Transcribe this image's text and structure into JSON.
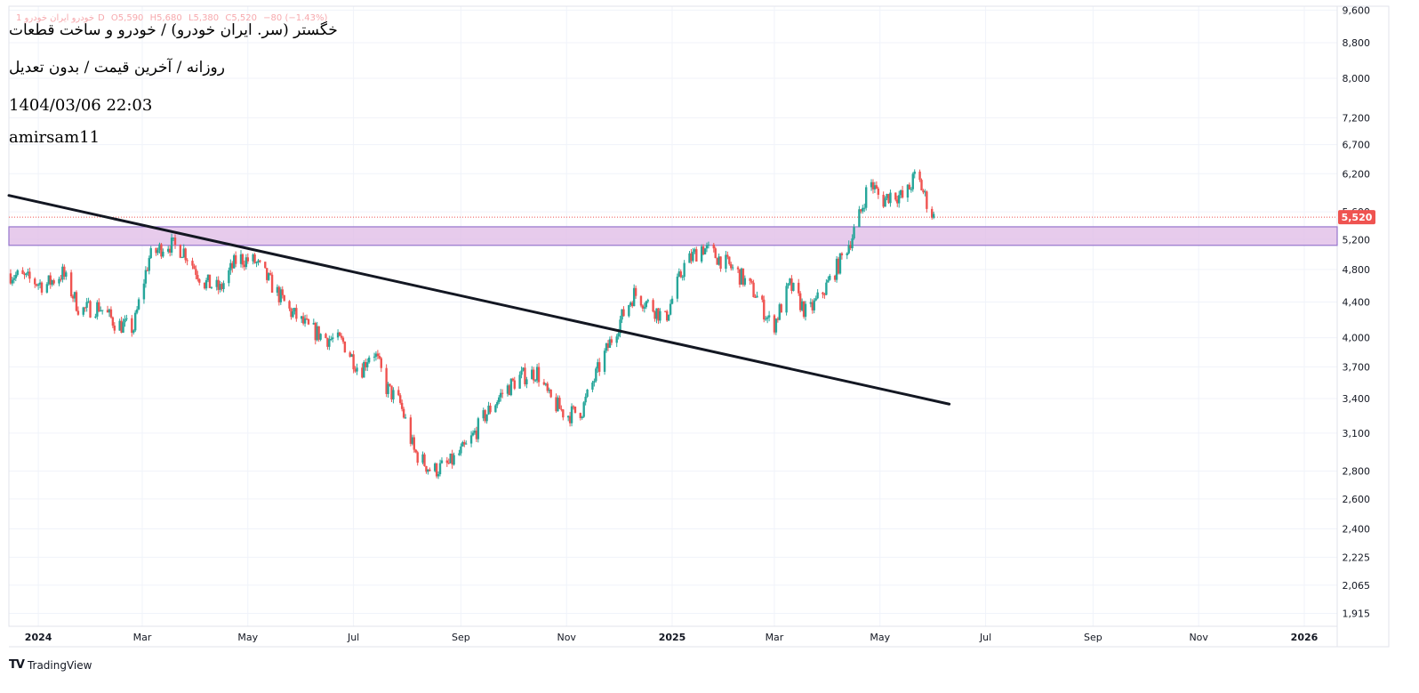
{
  "header": {
    "ohlc_symbol": "1 خودرو ایران خودرو",
    "ohlc_tf": "D",
    "ohlc_open": "O5,590",
    "ohlc_high": "H5,680",
    "ohlc_low": "L5,380",
    "ohlc_close": "C5,520",
    "ohlc_change": "−80 (−1.43%)",
    "title": "خگستر (سر. ایران خودرو) / خودرو و ساخت قطعات",
    "timeframe_line": "روزانه / آخرین قیمت / بدون تعدیل",
    "datetime": "1404/03/06 22:03",
    "author": "amirsam11"
  },
  "footer": {
    "brand_mark": "TV",
    "brand": "TradingView"
  },
  "colors": {
    "up": "#26a69a",
    "down": "#ef5350",
    "trendline": "#131722",
    "zone_fill": "#e1bee7",
    "zone_border": "#9575cd",
    "price_line": "#ef5350",
    "grid": "#f0f3fa"
  },
  "chart_data": {
    "type": "candlestick",
    "y_scale": "log",
    "ylim": [
      1850,
      9700
    ],
    "y_ticks": [
      1915,
      2065,
      2225,
      2400,
      2600,
      2800,
      3100,
      3400,
      3700,
      4000,
      4400,
      4800,
      5200,
      5600,
      6200,
      6700,
      7200,
      8000,
      8800,
      9600
    ],
    "y_tick_labels": [
      "1,915",
      "2,065",
      "2,225",
      "2,400",
      "2,600",
      "2,800",
      "3,100",
      "3,400",
      "3,700",
      "4,000",
      "4,400",
      "4,800",
      "5,200",
      "5,600",
      "6,200",
      "6,700",
      "7,200",
      "8,000",
      "8,800",
      "9,600"
    ],
    "x_range": [
      "2023-12-15",
      "2026-01-20"
    ],
    "x_ticks": [
      {
        "date": "2024-01-01",
        "label": "2024",
        "bold": true
      },
      {
        "date": "2024-03-01",
        "label": "Mar",
        "bold": false
      },
      {
        "date": "2024-05-01",
        "label": "May",
        "bold": false
      },
      {
        "date": "2024-07-01",
        "label": "Jul",
        "bold": false
      },
      {
        "date": "2024-09-01",
        "label": "Sep",
        "bold": false
      },
      {
        "date": "2024-11-01",
        "label": "Nov",
        "bold": false
      },
      {
        "date": "2025-01-01",
        "label": "2025",
        "bold": true
      },
      {
        "date": "2025-03-01",
        "label": "Mar",
        "bold": false
      },
      {
        "date": "2025-05-01",
        "label": "May",
        "bold": false
      },
      {
        "date": "2025-07-01",
        "label": "Jul",
        "bold": false
      },
      {
        "date": "2025-09-01",
        "label": "Sep",
        "bold": false
      },
      {
        "date": "2025-11-01",
        "label": "Nov",
        "bold": false
      },
      {
        "date": "2026-01-01",
        "label": "2026",
        "bold": true
      }
    ],
    "last_price": 5520,
    "last_price_label": "5,520",
    "zone": {
      "low": 5120,
      "high": 5380
    },
    "trendline": {
      "start": [
        "2023-12-15",
        5850
      ],
      "end": [
        "2025-06-10",
        3350
      ]
    },
    "price_path": [
      [
        "2023-12-15",
        4750
      ],
      [
        "2023-12-25",
        4680
      ],
      [
        "2024-01-05",
        4600
      ],
      [
        "2024-01-15",
        4750
      ],
      [
        "2024-01-25",
        4300
      ],
      [
        "2024-02-05",
        4350
      ],
      [
        "2024-02-15",
        4150
      ],
      [
        "2024-02-25",
        4100
      ],
      [
        "2024-03-05",
        4950
      ],
      [
        "2024-03-15",
        5150
      ],
      [
        "2024-03-25",
        5050
      ],
      [
        "2024-04-05",
        4650
      ],
      [
        "2024-04-15",
        4550
      ],
      [
        "2024-04-25",
        4950
      ],
      [
        "2024-05-05",
        4900
      ],
      [
        "2024-05-15",
        4600
      ],
      [
        "2024-05-25",
        4300
      ],
      [
        "2024-06-05",
        4100
      ],
      [
        "2024-06-15",
        4000
      ],
      [
        "2024-06-25",
        3950
      ],
      [
        "2024-07-05",
        3650
      ],
      [
        "2024-07-12",
        3900
      ],
      [
        "2024-07-20",
        3500
      ],
      [
        "2024-07-28",
        3350
      ],
      [
        "2024-08-05",
        2950
      ],
      [
        "2024-08-15",
        2800
      ],
      [
        "2024-08-25",
        2850
      ],
      [
        "2024-09-05",
        3000
      ],
      [
        "2024-09-15",
        3250
      ],
      [
        "2024-09-25",
        3450
      ],
      [
        "2024-10-05",
        3600
      ],
      [
        "2024-10-15",
        3650
      ],
      [
        "2024-10-22",
        3400
      ],
      [
        "2024-11-01",
        3250
      ],
      [
        "2024-11-10",
        3300
      ],
      [
        "2024-11-20",
        3700
      ],
      [
        "2024-12-01",
        4150
      ],
      [
        "2024-12-10",
        4500
      ],
      [
        "2024-12-20",
        4350
      ],
      [
        "2024-12-28",
        4200
      ],
      [
        "2025-01-08",
        4850
      ],
      [
        "2025-01-18",
        5100
      ],
      [
        "2025-01-28",
        4950
      ],
      [
        "2025-02-08",
        4750
      ],
      [
        "2025-02-18",
        4500
      ],
      [
        "2025-02-28",
        4100
      ],
      [
        "2025-03-10",
        4600
      ],
      [
        "2025-03-20",
        4250
      ],
      [
        "2025-03-30",
        4550
      ],
      [
        "2025-04-08",
        4900
      ],
      [
        "2025-04-15",
        5250
      ],
      [
        "2025-04-20",
        5600
      ],
      [
        "2025-04-25",
        6100
      ],
      [
        "2025-05-02",
        5750
      ],
      [
        "2025-05-08",
        5900
      ],
      [
        "2025-05-15",
        5800
      ],
      [
        "2025-05-22",
        6200
      ],
      [
        "2025-05-28",
        5750
      ],
      [
        "2025-06-01",
        5520
      ]
    ]
  }
}
